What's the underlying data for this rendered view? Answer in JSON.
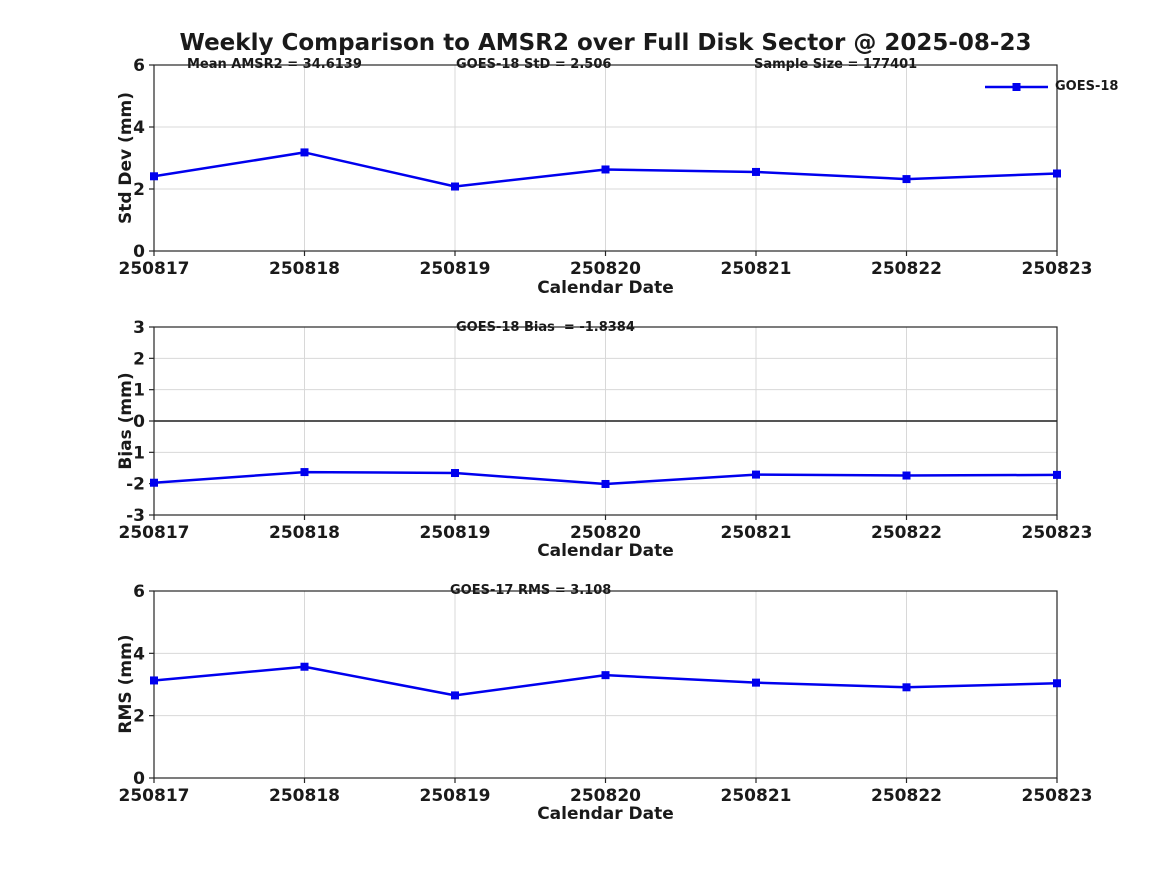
{
  "figure": {
    "title": "Weekly Comparison to AMSR2 over Full Disk Sector @ 2025-08-23",
    "background": "#ffffff"
  },
  "legend": {
    "label": "GOES-18",
    "series_color": "#0000ee"
  },
  "style_colors": {
    "line": "#0000ee",
    "grid": "#d8d8d8",
    "spine": "#262626",
    "zero_line": "#3d3d3d",
    "text": "#1a1a1a"
  },
  "chart_data": [
    {
      "type": "line",
      "ylabel": "Std Dev (mm)",
      "xlabel": "Calendar Date",
      "categories": [
        "250817",
        "250818",
        "250819",
        "250820",
        "250821",
        "250822",
        "250823"
      ],
      "series": [
        {
          "name": "GOES-18",
          "color": "#0000ee",
          "marker": "square",
          "values": [
            2.41,
            3.18,
            2.08,
            2.63,
            2.55,
            2.32,
            2.5
          ]
        }
      ],
      "ylim": [
        0,
        6
      ],
      "yticks": [
        0,
        2,
        4,
        6
      ],
      "grid": true,
      "zero_line": false,
      "legend_position": "top-right",
      "annotations": [
        "Mean AMSR2 = 34.6139",
        "GOES-18 StD = 2.506",
        "Sample Size = 177401"
      ]
    },
    {
      "type": "line",
      "ylabel": "Bias (mm)",
      "xlabel": "Calendar Date",
      "categories": [
        "250817",
        "250818",
        "250819",
        "250820",
        "250821",
        "250822",
        "250823"
      ],
      "series": [
        {
          "name": "GOES-18",
          "color": "#0000ee",
          "marker": "square",
          "values": [
            -1.97,
            -1.63,
            -1.66,
            -2.01,
            -1.71,
            -1.74,
            -1.72
          ]
        }
      ],
      "ylim": [
        -3,
        3
      ],
      "yticks": [
        -3,
        -2,
        -1,
        0,
        1,
        2,
        3
      ],
      "grid": true,
      "zero_line": true,
      "annotations": [
        "GOES-18 Bias  = -1.8384"
      ]
    },
    {
      "type": "line",
      "ylabel": "RMS (mm)",
      "xlabel": "Calendar Date",
      "categories": [
        "250817",
        "250818",
        "250819",
        "250820",
        "250821",
        "250822",
        "250823"
      ],
      "series": [
        {
          "name": "GOES-18",
          "color": "#0000ee",
          "marker": "square",
          "values": [
            3.13,
            3.57,
            2.65,
            3.3,
            3.06,
            2.91,
            3.04
          ]
        }
      ],
      "ylim": [
        0,
        6
      ],
      "yticks": [
        0,
        2,
        4,
        6
      ],
      "grid": true,
      "zero_line": false,
      "annotations": [
        "GOES-17 RMS = 3.108"
      ]
    }
  ]
}
